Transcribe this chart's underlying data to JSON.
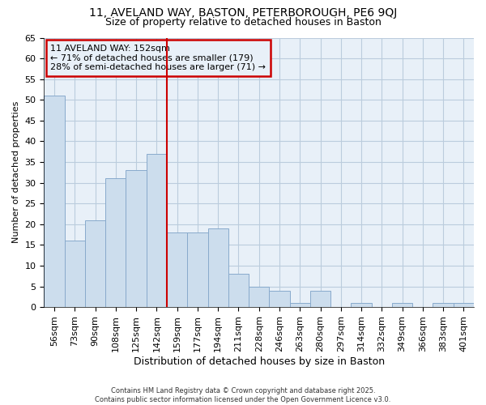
{
  "title1": "11, AVELAND WAY, BASTON, PETERBOROUGH, PE6 9QJ",
  "title2": "Size of property relative to detached houses in Baston",
  "xlabel": "Distribution of detached houses by size in Baston",
  "ylabel": "Number of detached properties",
  "categories": [
    "56sqm",
    "73sqm",
    "90sqm",
    "108sqm",
    "125sqm",
    "142sqm",
    "159sqm",
    "177sqm",
    "194sqm",
    "211sqm",
    "228sqm",
    "246sqm",
    "263sqm",
    "280sqm",
    "297sqm",
    "314sqm",
    "332sqm",
    "349sqm",
    "366sqm",
    "383sqm",
    "401sqm"
  ],
  "values": [
    51,
    16,
    21,
    31,
    33,
    37,
    18,
    18,
    19,
    8,
    5,
    4,
    1,
    4,
    0,
    1,
    0,
    1,
    0,
    1,
    1
  ],
  "bar_color": "#ccdded",
  "bar_edge_color": "#88aacc",
  "grid_color": "#bbccdd",
  "background_color": "#ffffff",
  "plot_bg_color": "#e8f0f8",
  "vline_x_index": 6.0,
  "vline_color": "#cc0000",
  "annotation_text": "11 AVELAND WAY: 152sqm\n← 71% of detached houses are smaller (179)\n28% of semi-detached houses are larger (71) →",
  "annotation_box_color": "#cc0000",
  "footer_text": "Contains HM Land Registry data © Crown copyright and database right 2025.\nContains public sector information licensed under the Open Government Licence v3.0.",
  "ylim": [
    0,
    65
  ],
  "yticks": [
    0,
    5,
    10,
    15,
    20,
    25,
    30,
    35,
    40,
    45,
    50,
    55,
    60,
    65
  ],
  "title1_fontsize": 10,
  "title2_fontsize": 9,
  "xlabel_fontsize": 9,
  "ylabel_fontsize": 8,
  "tick_fontsize": 8,
  "annotation_fontsize": 8,
  "footer_fontsize": 6
}
